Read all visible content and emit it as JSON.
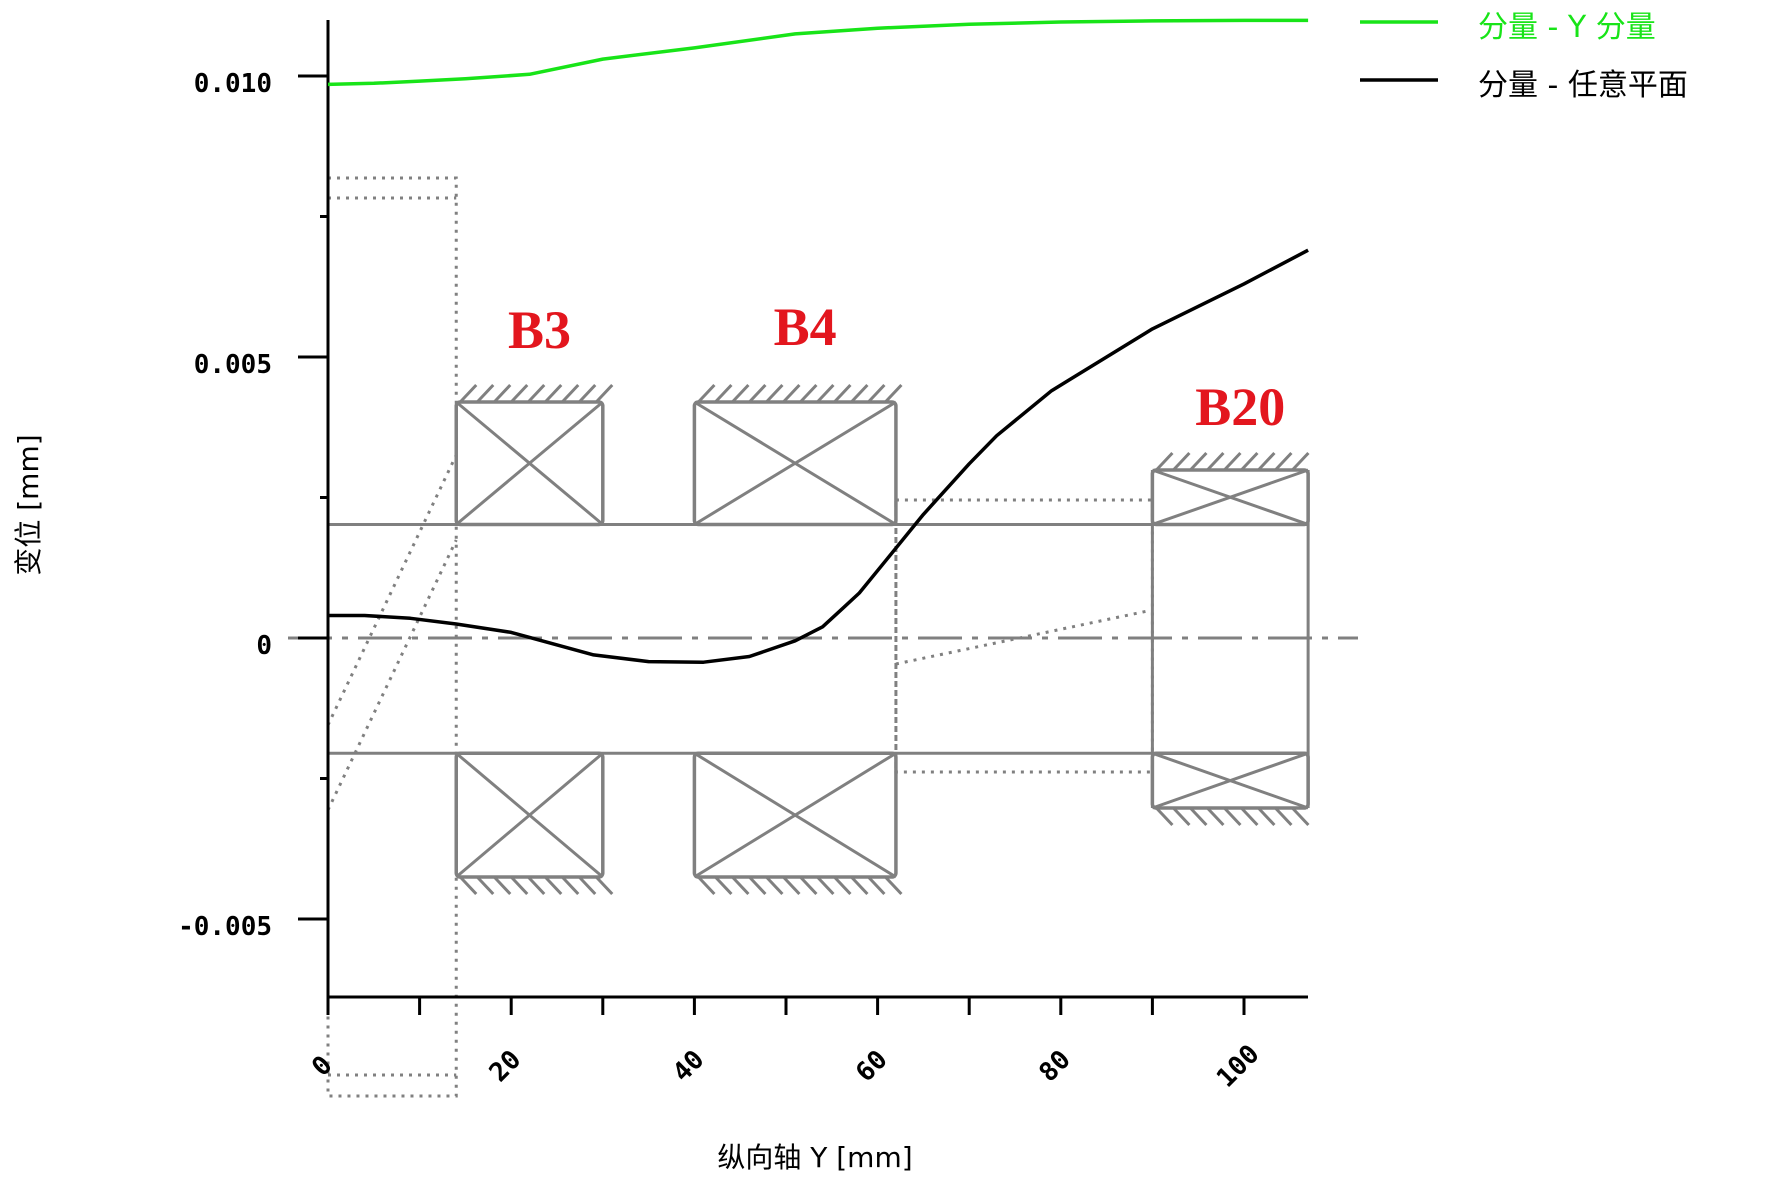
{
  "chart_data": {
    "type": "line",
    "xlabel": "纵向轴 Y [mm]",
    "ylabel": "变位 [mm]",
    "xlim": [
      0,
      107
    ],
    "ylim": [
      -0.0063,
      0.0111
    ],
    "x_ticks": [
      0,
      20,
      40,
      60,
      80,
      100
    ],
    "y_ticks": [
      -0.005,
      0,
      0.005,
      0.01
    ],
    "y_tick_labels": [
      "-0.005",
      "0",
      "0.005",
      "0.010"
    ],
    "legend_position": "top-right",
    "series": [
      {
        "name": "分量 - Y 分量",
        "color": "#18e418",
        "x": [
          0,
          5,
          10,
          15,
          22,
          30,
          40,
          51,
          60,
          70,
          80,
          90,
          100,
          107
        ],
        "y": [
          0.00985,
          0.00987,
          0.00991,
          0.00995,
          0.01003,
          0.0103,
          0.0105,
          0.01075,
          0.01085,
          0.01092,
          0.01096,
          0.01098,
          0.01099,
          0.01099
        ]
      },
      {
        "name": "分量 - 任意平面",
        "color": "#000000",
        "x": [
          0,
          4,
          9,
          14,
          20,
          29,
          35,
          41,
          46,
          51,
          54,
          56,
          58,
          61,
          65,
          70,
          73,
          79,
          85,
          90,
          95,
          100,
          107
        ],
        "y": [
          0.0004,
          0.0004,
          0.00035,
          0.00025,
          0.0001,
          -0.0003,
          -0.00042,
          -0.00043,
          -0.00033,
          -5e-05,
          0.0002,
          0.0005,
          0.0008,
          0.0014,
          0.0022,
          0.0031,
          0.0036,
          0.0044,
          0.005,
          0.0055,
          0.0059,
          0.0063,
          0.0069
        ]
      }
    ],
    "annotations": {
      "bearings": [
        {
          "label": "B3",
          "x1": 14,
          "x2": 30
        },
        {
          "label": "B4",
          "x1": 40,
          "x2": 62
        },
        {
          "label": "B20",
          "x1": 90,
          "x2": 107
        }
      ]
    }
  }
}
